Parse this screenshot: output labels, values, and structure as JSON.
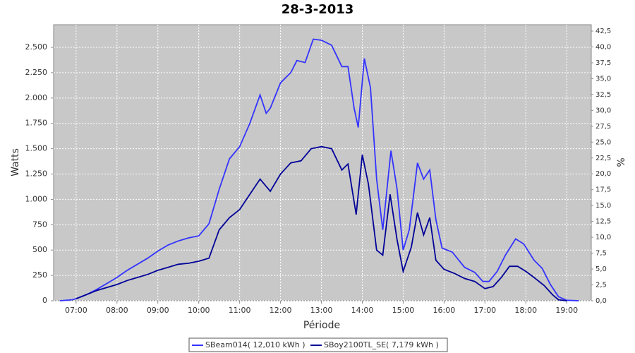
{
  "chart_data": {
    "type": "line",
    "title": "28-3-2013",
    "x_label": "Période",
    "y_label": "Watts",
    "y2_label": "%",
    "xlim": [
      6.45,
      19.6
    ],
    "xticks": [
      {
        "value": 7,
        "label": "07:00"
      },
      {
        "value": 8,
        "label": "08:00"
      },
      {
        "value": 9,
        "label": "09:00"
      },
      {
        "value": 10,
        "label": "10:00"
      },
      {
        "value": 11,
        "label": "11:00"
      },
      {
        "value": 12,
        "label": "12:00"
      },
      {
        "value": 13,
        "label": "13:00"
      },
      {
        "value": 14,
        "label": "14:00"
      },
      {
        "value": 15,
        "label": "15:00"
      },
      {
        "value": 16,
        "label": "16:00"
      },
      {
        "value": 17,
        "label": "17:00"
      },
      {
        "value": 18,
        "label": "18:00"
      },
      {
        "value": 19,
        "label": "19:00"
      }
    ],
    "ylim": [
      0,
      2723
    ],
    "yticks": [
      0,
      250,
      500,
      750,
      {
        "value": 1000,
        "label": "1.000"
      },
      {
        "value": 1250,
        "label": "1.250"
      },
      {
        "value": 1500,
        "label": "1.500"
      },
      {
        "value": 1750,
        "label": "1.750"
      },
      {
        "value": 2000,
        "label": "2.000"
      },
      {
        "value": 2250,
        "label": "2.250"
      },
      {
        "value": 2500,
        "label": "2.500"
      }
    ],
    "y2lim": [
      0,
      43.5
    ],
    "y2ticks": [
      {
        "value": 0,
        "label": "0,0"
      },
      {
        "value": 2.5,
        "label": "2,5"
      },
      {
        "value": 5,
        "label": "5,0"
      },
      {
        "value": 7.5,
        "label": "7,5"
      },
      {
        "value": 10,
        "label": "10,0"
      },
      {
        "value": 12.5,
        "label": "12,5"
      },
      {
        "value": 15,
        "label": "15,0"
      },
      {
        "value": 17.5,
        "label": "17,5"
      },
      {
        "value": 20,
        "label": "20,0"
      },
      {
        "value": 22.5,
        "label": "22,5"
      },
      {
        "value": 25,
        "label": "25,0"
      },
      {
        "value": 27.5,
        "label": "27,5"
      },
      {
        "value": 30,
        "label": "30,0"
      },
      {
        "value": 32.5,
        "label": "32,5"
      },
      {
        "value": 35,
        "label": "35,0"
      },
      {
        "value": 37.5,
        "label": "37,5"
      },
      {
        "value": 40,
        "label": "40,0"
      },
      {
        "value": 42.5,
        "label": "42,5"
      }
    ],
    "grid": true,
    "legend": "bottom",
    "series": [
      {
        "name": "SBeam014( 12,010 kWh )",
        "color": "#3333ff",
        "x": [
          6.6,
          6.9,
          7.0,
          7.25,
          7.5,
          7.75,
          8.0,
          8.25,
          8.5,
          8.75,
          9.0,
          9.25,
          9.5,
          9.75,
          10.0,
          10.25,
          10.5,
          10.75,
          11.0,
          11.25,
          11.5,
          11.65,
          11.75,
          12.0,
          12.25,
          12.4,
          12.6,
          12.8,
          13.0,
          13.25,
          13.5,
          13.65,
          13.8,
          13.9,
          14.05,
          14.2,
          14.35,
          14.5,
          14.7,
          14.85,
          15.0,
          15.15,
          15.35,
          15.5,
          15.65,
          15.8,
          15.95,
          16.2,
          16.5,
          16.75,
          16.95,
          17.1,
          17.3,
          17.5,
          17.75,
          17.95,
          18.2,
          18.4,
          18.6,
          18.8,
          19.0,
          19.3
        ],
        "values": [
          0,
          10,
          20,
          60,
          110,
          170,
          230,
          300,
          360,
          420,
          490,
          550,
          590,
          620,
          640,
          760,
          1100,
          1400,
          1520,
          1750,
          2030,
          1850,
          1900,
          2150,
          2250,
          2370,
          2350,
          2580,
          2570,
          2520,
          2310,
          2310,
          1900,
          1710,
          2390,
          2100,
          1200,
          700,
          1480,
          1100,
          500,
          700,
          1360,
          1200,
          1290,
          800,
          520,
          480,
          330,
          280,
          190,
          190,
          290,
          450,
          610,
          560,
          400,
          320,
          160,
          40,
          5,
          0
        ]
      },
      {
        "name": "SBoy2100TL_SE( 7,179 kWh )",
        "color": "#000099",
        "x": [
          7.0,
          7.25,
          7.5,
          7.75,
          8.0,
          8.25,
          8.5,
          8.75,
          9.0,
          9.25,
          9.5,
          9.75,
          10.0,
          10.25,
          10.5,
          10.75,
          11.0,
          11.25,
          11.5,
          11.75,
          12.0,
          12.25,
          12.5,
          12.75,
          13.0,
          13.25,
          13.5,
          13.65,
          13.85,
          14.0,
          14.15,
          14.35,
          14.5,
          14.68,
          14.85,
          15.0,
          15.2,
          15.35,
          15.5,
          15.65,
          15.8,
          16.0,
          16.25,
          16.5,
          16.75,
          17.0,
          17.2,
          17.4,
          17.6,
          17.8,
          18.0,
          18.2,
          18.45,
          18.65,
          18.8,
          19.0
        ],
        "values": [
          20,
          60,
          100,
          130,
          160,
          200,
          230,
          260,
          300,
          330,
          360,
          370,
          390,
          420,
          700,
          820,
          900,
          1050,
          1200,
          1080,
          1250,
          1360,
          1380,
          1500,
          1520,
          1500,
          1290,
          1350,
          850,
          1440,
          1150,
          500,
          450,
          1050,
          600,
          290,
          530,
          870,
          650,
          820,
          400,
          310,
          270,
          220,
          190,
          120,
          140,
          230,
          340,
          340,
          290,
          230,
          150,
          60,
          10,
          0
        ]
      }
    ]
  }
}
